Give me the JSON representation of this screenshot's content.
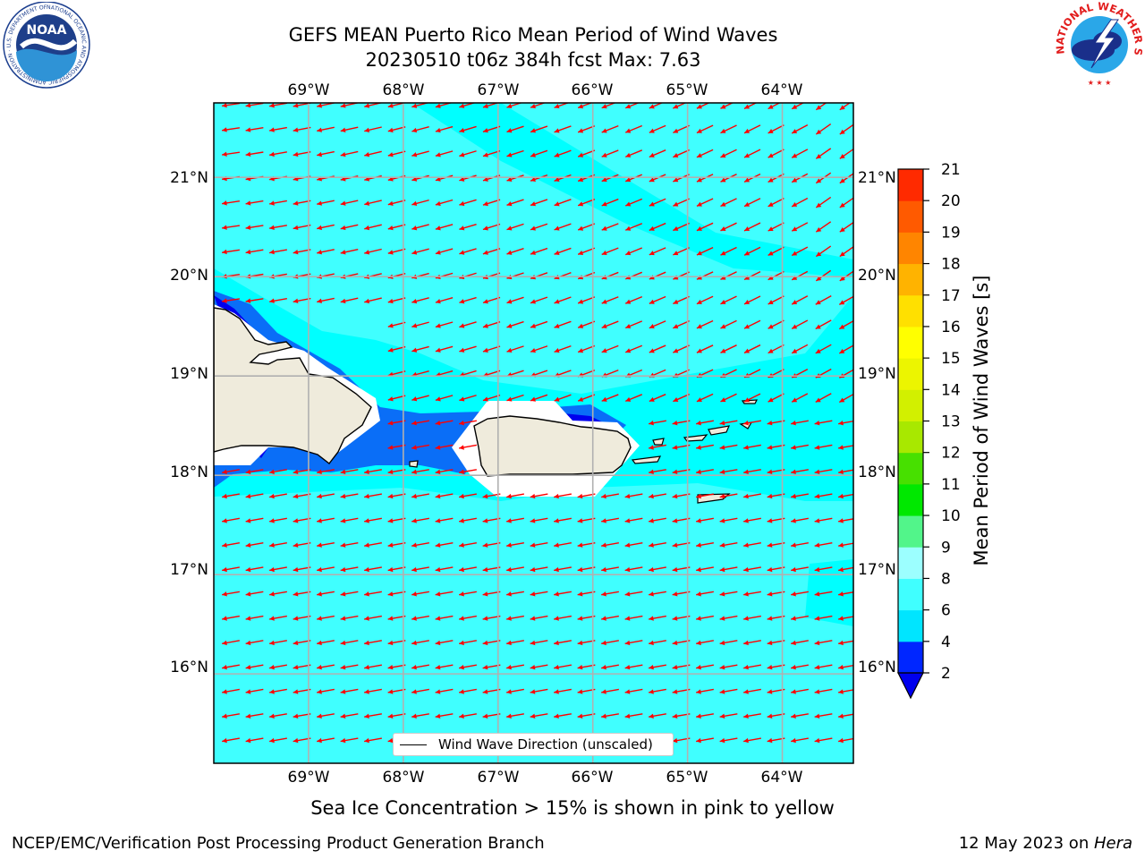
{
  "title": {
    "line1": "GEFS MEAN Puerto Rico Mean Period of Wind Waves",
    "line2": "20230510 t06z 384h fcst   Max: 7.63"
  },
  "map": {
    "lon_ticks": [
      "69°W",
      "68°W",
      "67°W",
      "66°W",
      "65°W",
      "64°W"
    ],
    "lat_ticks": [
      "21°N",
      "20°N",
      "19°N",
      "18°N",
      "17°N",
      "16°N"
    ],
    "lon_range": [
      -70,
      -63.25
    ],
    "lat_range": [
      15.1,
      21.75
    ],
    "wave_field_dominant_color": "#00ffff",
    "gridlines": true,
    "vector_color": "#ff0000",
    "land_color": "#efebdc"
  },
  "legend": {
    "text": "Wind Wave Direction (unscaled)",
    "placement": "bottom-center"
  },
  "colorbar": {
    "title": "Mean Period of Wind Waves [s]",
    "ticks": [
      "2",
      "4",
      "6",
      "8",
      "9",
      "10",
      "11",
      "12",
      "13",
      "14",
      "15",
      "16",
      "17",
      "18",
      "19",
      "20",
      "21"
    ],
    "colors": [
      "#0026ff",
      "#00e5ff",
      "#40ffff",
      "#9cffff",
      "#52f58a",
      "#00e800",
      "#47e000",
      "#a8e800",
      "#d2f000",
      "#ecf500",
      "#ffff00",
      "#ffe000",
      "#ffb300",
      "#ff8500",
      "#ff5a00",
      "#ff2a00"
    ],
    "under_color": "#0000ee"
  },
  "caption": "Sea Ice Concentration > 15% is shown in pink to yellow",
  "footer": {
    "left": "NCEP/EMC/Verification Post Processing Product Generation Branch",
    "right_prefix": "12 May 2023 on ",
    "right_machine": "Hera"
  },
  "logos": {
    "noaa_text": "NOAA",
    "noaa_ring_text": "NATIONAL OCEANIC AND ATMOSPHERIC ADMINISTRATION · U.S. DEPARTMENT OF COMMERCE",
    "nws_ring_text": "NATIONAL WEATHER SERVICE"
  }
}
